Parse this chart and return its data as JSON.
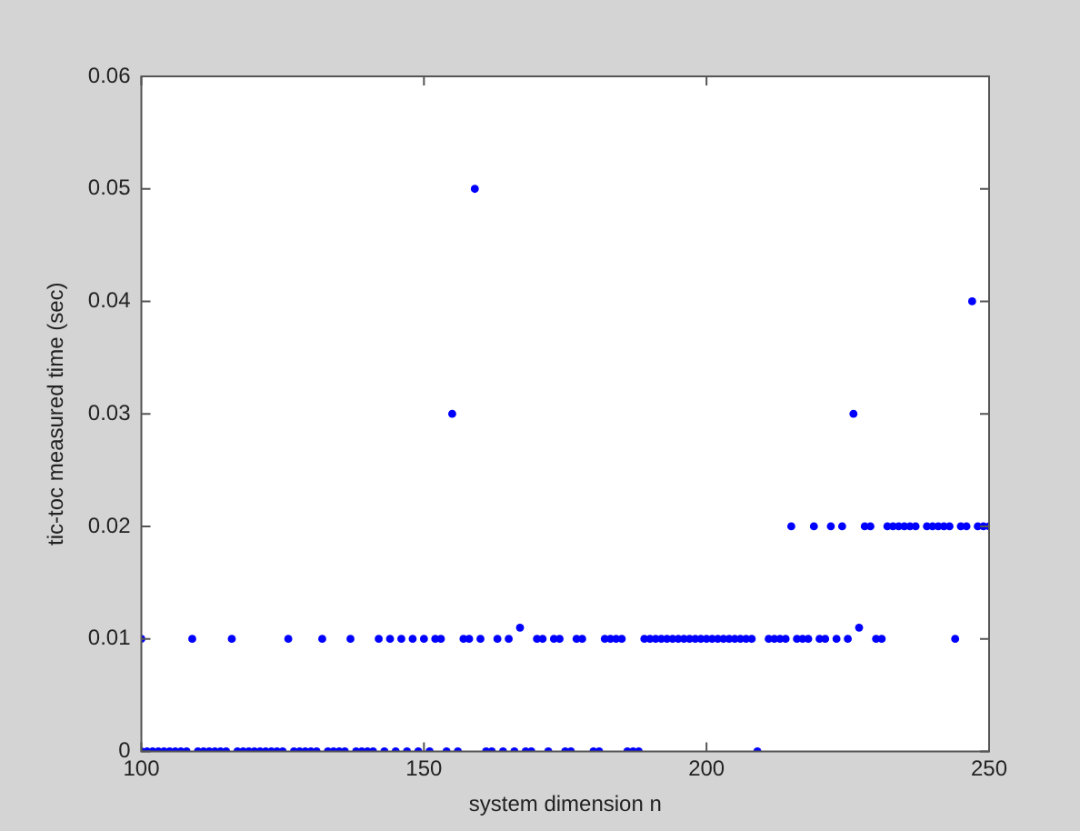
{
  "chart_data": {
    "type": "scatter",
    "xlabel": "system dimension n",
    "ylabel": "tic-toc measured time (sec)",
    "xlim": [
      100,
      250
    ],
    "xticks": [
      100,
      150,
      200,
      250
    ],
    "ylim": [
      0,
      0.06
    ],
    "yticks": [
      0,
      0.01,
      0.02,
      0.03,
      0.04,
      0.05,
      0.06
    ],
    "grid": false,
    "legend": false,
    "marker": "circle",
    "series": [
      {
        "color": "#0000ff",
        "x": [
          100,
          101,
          102,
          103,
          104,
          105,
          106,
          107,
          108,
          110,
          111,
          112,
          113,
          114,
          115,
          117,
          118,
          119,
          120,
          121,
          122,
          123,
          124,
          125,
          127,
          128,
          129,
          130,
          131,
          133,
          134,
          135,
          136,
          138,
          139,
          140,
          141,
          143,
          145,
          147,
          149,
          151,
          154,
          156,
          161,
          162,
          164,
          166,
          168,
          169,
          172,
          175,
          176,
          180,
          181,
          186,
          187,
          188,
          209,
          100,
          109,
          116,
          126,
          132,
          137,
          142,
          144,
          146,
          148,
          150,
          152,
          153,
          157,
          158,
          160,
          163,
          165,
          170,
          171,
          173,
          174,
          177,
          178,
          182,
          183,
          184,
          185,
          189,
          190,
          191,
          192,
          193,
          194,
          195,
          196,
          197,
          198,
          199,
          200,
          201,
          202,
          203,
          204,
          205,
          206,
          207,
          208,
          211,
          212,
          213,
          214,
          216,
          217,
          218,
          220,
          221,
          223,
          225,
          230,
          231,
          244,
          167,
          227,
          215,
          219,
          222,
          224,
          228,
          229,
          232,
          233,
          234,
          235,
          236,
          237,
          239,
          240,
          241,
          242,
          243,
          245,
          246,
          248,
          249,
          250,
          155,
          226,
          247,
          159
        ],
        "values": [
          0,
          0,
          0,
          0,
          0,
          0,
          0,
          0,
          0,
          0,
          0,
          0,
          0,
          0,
          0,
          0,
          0,
          0,
          0,
          0,
          0,
          0,
          0,
          0,
          0,
          0,
          0,
          0,
          0,
          0,
          0,
          0,
          0,
          0,
          0,
          0,
          0,
          0,
          0,
          0,
          0,
          0,
          0,
          0,
          0,
          0,
          0,
          0,
          0,
          0,
          0,
          0,
          0,
          0,
          0,
          0,
          0,
          0,
          0,
          0.01,
          0.01,
          0.01,
          0.01,
          0.01,
          0.01,
          0.01,
          0.01,
          0.01,
          0.01,
          0.01,
          0.01,
          0.01,
          0.01,
          0.01,
          0.01,
          0.01,
          0.01,
          0.01,
          0.01,
          0.01,
          0.01,
          0.01,
          0.01,
          0.01,
          0.01,
          0.01,
          0.01,
          0.01,
          0.01,
          0.01,
          0.01,
          0.01,
          0.01,
          0.01,
          0.01,
          0.01,
          0.01,
          0.01,
          0.01,
          0.01,
          0.01,
          0.01,
          0.01,
          0.01,
          0.01,
          0.01,
          0.01,
          0.01,
          0.01,
          0.01,
          0.01,
          0.01,
          0.01,
          0.01,
          0.01,
          0.01,
          0.01,
          0.01,
          0.01,
          0.01,
          0.01,
          0.011,
          0.011,
          0.02,
          0.02,
          0.02,
          0.02,
          0.02,
          0.02,
          0.02,
          0.02,
          0.02,
          0.02,
          0.02,
          0.02,
          0.02,
          0.02,
          0.02,
          0.02,
          0.02,
          0.02,
          0.02,
          0.02,
          0.02,
          0.02,
          0.03,
          0.03,
          0.04,
          0.05
        ]
      }
    ]
  }
}
